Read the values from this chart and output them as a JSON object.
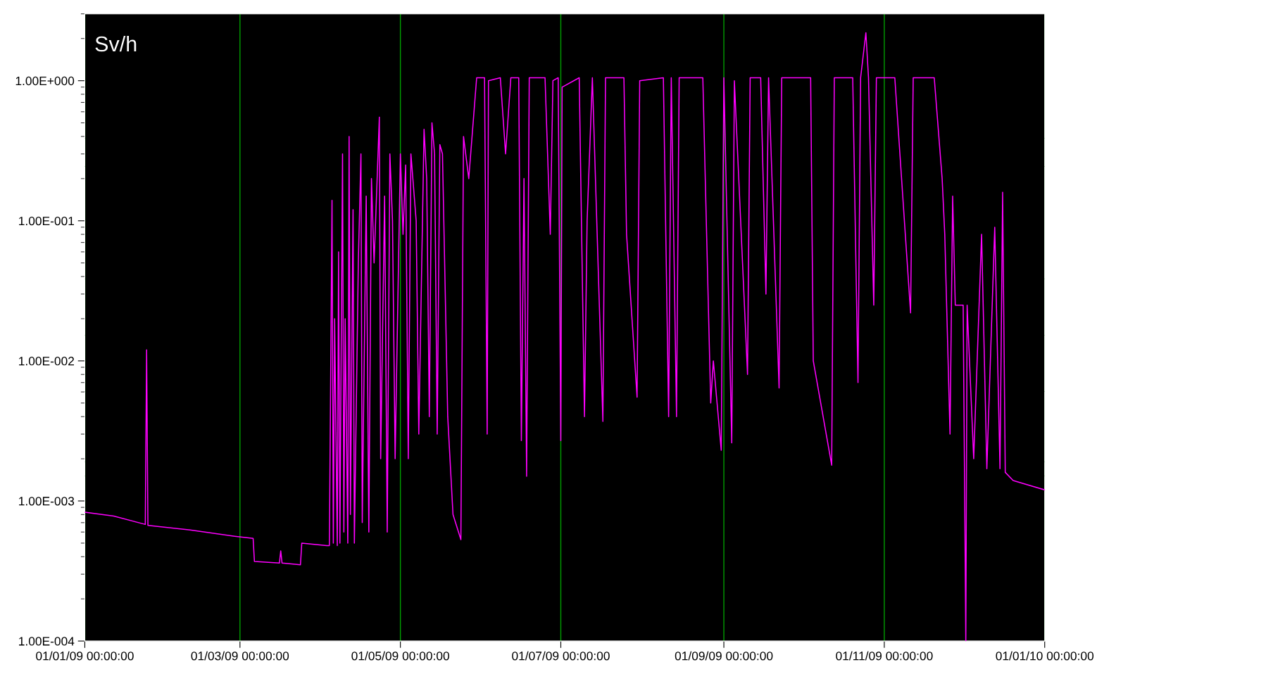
{
  "chart_data": {
    "type": "line",
    "ylabel": "Sv/h",
    "log": "y",
    "grid": "x",
    "ylim": [
      0.0001,
      3
    ],
    "yticks": [
      {
        "value": 0.0001,
        "label": "1.00E-004"
      },
      {
        "value": 0.001,
        "label": "1.00E-003"
      },
      {
        "value": 0.01,
        "label": "1.00E-002"
      },
      {
        "value": 0.1,
        "label": "1.00E-001"
      },
      {
        "value": 1,
        "label": "1.00E+000"
      }
    ],
    "xlim": [
      "2009-01-01",
      "2010-01-01"
    ],
    "xticks": [
      {
        "value": "2009-01-01",
        "label": "01/01/09 00:00:00"
      },
      {
        "value": "2009-03-01",
        "label": "01/03/09 00:00:00"
      },
      {
        "value": "2009-05-01",
        "label": "01/05/09 00:00:00"
      },
      {
        "value": "2009-07-01",
        "label": "01/07/09 00:00:00"
      },
      {
        "value": "2009-09-01",
        "label": "01/09/09 00:00:00"
      },
      {
        "value": "2009-11-01",
        "label": "01/11/09 00:00:00"
      },
      {
        "value": "2010-01-01",
        "label": "01/01/10 00:00:00"
      }
    ],
    "series": [
      {
        "color": "#ff00ff",
        "x": [
          "2009-01-01",
          "2009-01-12",
          "2009-01-24T00:00",
          "2009-01-24T12:00",
          "2009-01-25T00:00",
          "2009-02-10",
          "2009-02-27",
          "2009-03-06",
          "2009-03-06T12:00",
          "2009-03-16",
          "2009-03-16T12:00",
          "2009-03-17",
          "2009-03-24",
          "2009-03-24T12:00",
          "2009-04-03",
          "2009-04-04",
          "2009-04-05",
          "2009-04-05T12:00",
          "2009-04-06",
          "2009-04-07",
          "2009-04-07T12:00",
          "2009-04-08",
          "2009-04-09",
          "2009-04-09T12:00",
          "2009-04-10",
          "2009-04-11",
          "2009-04-11T12:00",
          "2009-04-12",
          "2009-04-13",
          "2009-04-13T12:00",
          "2009-04-15",
          "2009-04-16",
          "2009-04-16T12:00",
          "2009-04-18",
          "2009-04-19",
          "2009-04-20",
          "2009-04-21",
          "2009-04-23",
          "2009-04-23T12:00",
          "2009-04-25",
          "2009-04-26",
          "2009-04-27",
          "2009-04-28",
          "2009-04-29",
          "2009-05-01",
          "2009-05-02",
          "2009-05-03",
          "2009-05-04",
          "2009-05-05",
          "2009-05-07",
          "2009-05-08",
          "2009-05-10",
          "2009-05-11",
          "2009-05-12",
          "2009-05-13",
          "2009-05-14",
          "2009-05-15",
          "2009-05-16",
          "2009-05-17",
          "2009-05-19",
          "2009-05-21",
          "2009-05-24",
          "2009-05-25",
          "2009-05-27",
          "2009-05-30",
          "2009-06-02",
          "2009-06-03",
          "2009-06-03T12:00",
          "2009-06-08",
          "2009-06-10",
          "2009-06-12",
          "2009-06-15",
          "2009-06-16",
          "2009-06-17",
          "2009-06-18",
          "2009-06-19",
          "2009-06-25",
          "2009-06-27",
          "2009-06-28",
          "2009-06-30",
          "2009-07-01",
          "2009-07-01T12:00",
          "2009-07-08",
          "2009-07-10",
          "2009-07-11",
          "2009-07-13",
          "2009-07-17",
          "2009-07-18",
          "2009-07-25",
          "2009-07-26",
          "2009-07-30",
          "2009-07-31",
          "2009-08-09",
          "2009-08-11",
          "2009-08-12",
          "2009-08-14",
          "2009-08-15",
          "2009-08-24",
          "2009-08-27",
          "2009-08-28",
          "2009-08-31",
          "2009-09-01",
          "2009-09-04",
          "2009-09-05",
          "2009-09-10",
          "2009-09-11",
          "2009-09-15",
          "2009-09-17",
          "2009-09-18",
          "2009-09-22",
          "2009-09-23",
          "2009-10-04",
          "2009-10-05",
          "2009-10-12",
          "2009-10-13",
          "2009-10-20",
          "2009-10-22",
          "2009-10-23",
          "2009-10-25",
          "2009-10-26",
          "2009-10-28",
          "2009-10-29",
          "2009-11-05",
          "2009-11-11",
          "2009-11-12",
          "2009-11-20",
          "2009-11-23",
          "2009-11-24",
          "2009-11-26",
          "2009-11-27",
          "2009-11-28",
          "2009-12-01",
          "2009-12-02",
          "2009-12-02T12:00",
          "2009-12-05",
          "2009-12-08",
          "2009-12-10",
          "2009-12-13",
          "2009-12-15",
          "2009-12-16",
          "2009-12-17",
          "2009-12-20",
          "2010-01-01"
        ],
        "values": [
          0.00083,
          0.00078,
          0.00068,
          0.012,
          0.00067,
          0.00062,
          0.00056,
          0.00054,
          0.00037,
          0.00036,
          0.00044,
          0.00036,
          0.00035,
          0.0005,
          0.00048,
          0.00048,
          0.14,
          0.0005,
          0.02,
          0.00048,
          0.06,
          0.0005,
          0.3,
          0.0006,
          0.02,
          0.0005,
          0.4,
          0.0008,
          0.12,
          0.0005,
          0.05,
          0.3,
          0.0007,
          0.15,
          0.0006,
          0.2,
          0.05,
          0.55,
          0.002,
          0.15,
          0.0006,
          0.3,
          0.1,
          0.002,
          0.3,
          0.08,
          0.25,
          0.002,
          0.3,
          0.1,
          0.003,
          0.45,
          0.2,
          0.004,
          0.5,
          0.3,
          0.003,
          0.35,
          0.3,
          0.004,
          0.0008,
          0.00053,
          0.4,
          0.2,
          1.05,
          1.05,
          0.003,
          1.0,
          1.05,
          0.3,
          1.05,
          1.05,
          0.0027,
          0.2,
          0.0015,
          1.05,
          1.05,
          0.08,
          1.0,
          1.05,
          0.0027,
          0.9,
          1.05,
          0.004,
          0.1,
          1.05,
          0.0037,
          1.05,
          1.05,
          0.08,
          0.0055,
          1.0,
          1.05,
          0.004,
          1.05,
          0.004,
          1.05,
          1.05,
          0.005,
          0.01,
          0.0023,
          1.05,
          0.0026,
          1.0,
          0.008,
          1.05,
          1.05,
          0.03,
          1.05,
          0.0064,
          1.05,
          1.05,
          0.01,
          0.0018,
          1.05,
          1.05,
          0.007,
          1.05,
          2.2,
          1.05,
          0.025,
          1.05,
          1.05,
          0.022,
          1.05,
          1.05,
          0.2,
          0.08,
          0.003,
          0.15,
          0.025,
          0.025,
          0.0001,
          0.025,
          0.002,
          0.08,
          0.0017,
          0.09,
          0.0017,
          0.16,
          0.0016,
          0.0014,
          0.0012
        ]
      }
    ]
  }
}
